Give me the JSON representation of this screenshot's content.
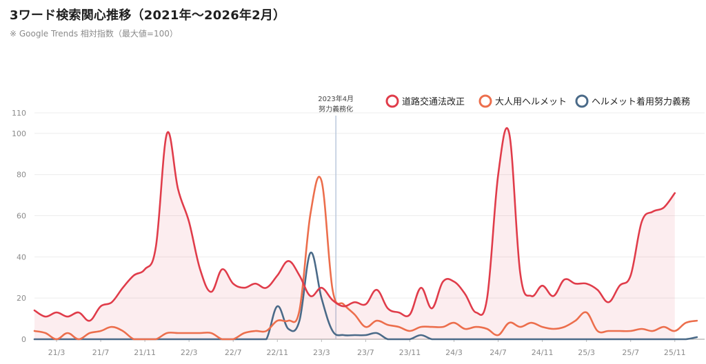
{
  "header": {
    "title": "3ワード検索関心推移（2021年～2026年2月）",
    "subtitle": "※ Google Trends 相対指数（最大値=100）"
  },
  "chart_data": {
    "type": "line",
    "title": "3ワード検索関心推移（2021年～2026年2月）",
    "subtitle": "※ Google Trends 相対指数（最大値=100）",
    "xlabel": "",
    "ylabel": "",
    "ylim": [
      0,
      110
    ],
    "yticks": [
      0,
      20,
      40,
      60,
      80,
      100,
      110
    ],
    "x_tick_labels": [
      "21/3",
      "21/7",
      "21/11",
      "22/3",
      "22/7",
      "22/11",
      "23/3",
      "23/7",
      "23/11",
      "24/3",
      "24/7",
      "24/11",
      "25/3",
      "25/7",
      "25/11"
    ],
    "x_tick_months": [
      2,
      6,
      10,
      14,
      18,
      22,
      26,
      30,
      34,
      38,
      42,
      46,
      50,
      54,
      58
    ],
    "x_start": "2021-01",
    "x_end": "2026-02",
    "grid": true,
    "legend_position": "top-right",
    "annotation": {
      "month": 27.3,
      "line1": "2023年4月",
      "line2": "努力義務化"
    },
    "series": [
      {
        "name": "道路交通法改正",
        "color": "#e03c4a",
        "fill": true,
        "points": [
          [
            0,
            14
          ],
          [
            1,
            11
          ],
          [
            2,
            13
          ],
          [
            3,
            11
          ],
          [
            4,
            13
          ],
          [
            5,
            9
          ],
          [
            6,
            16
          ],
          [
            7,
            18
          ],
          [
            8,
            25
          ],
          [
            9,
            31
          ],
          [
            10,
            34
          ],
          [
            11,
            45
          ],
          [
            12,
            100
          ],
          [
            13,
            73
          ],
          [
            14,
            57
          ],
          [
            15,
            34
          ],
          [
            16,
            23
          ],
          [
            17,
            34
          ],
          [
            18,
            27
          ],
          [
            19,
            25
          ],
          [
            20,
            27
          ],
          [
            21,
            25
          ],
          [
            22,
            31
          ],
          [
            23,
            38
          ],
          [
            24,
            31
          ],
          [
            25,
            21
          ],
          [
            26,
            25
          ],
          [
            27,
            19
          ],
          [
            28,
            16
          ],
          [
            29,
            18
          ],
          [
            30,
            17
          ],
          [
            31,
            24
          ],
          [
            32,
            15
          ],
          [
            33,
            13
          ],
          [
            34,
            12
          ],
          [
            35,
            25
          ],
          [
            36,
            15
          ],
          [
            37,
            28
          ],
          [
            38,
            28
          ],
          [
            39,
            22
          ],
          [
            40,
            13
          ],
          [
            41,
            20
          ],
          [
            42,
            80
          ],
          [
            43,
            100
          ],
          [
            44,
            32
          ],
          [
            45,
            21
          ],
          [
            46,
            26
          ],
          [
            47,
            21
          ],
          [
            48,
            29
          ],
          [
            49,
            27
          ],
          [
            50,
            27
          ],
          [
            51,
            24
          ],
          [
            52,
            18
          ],
          [
            53,
            26
          ],
          [
            54,
            31
          ],
          [
            55,
            57
          ],
          [
            56,
            62
          ],
          [
            57,
            64
          ],
          [
            58,
            71
          ]
        ]
      },
      {
        "name": "大人用ヘルメット",
        "color": "#ec6e4c",
        "fill": false,
        "points": [
          [
            0,
            4
          ],
          [
            1,
            3
          ],
          [
            2,
            0
          ],
          [
            3,
            3
          ],
          [
            4,
            0
          ],
          [
            5,
            3
          ],
          [
            6,
            4
          ],
          [
            7,
            6
          ],
          [
            8,
            4
          ],
          [
            9,
            0
          ],
          [
            10,
            0
          ],
          [
            11,
            0
          ],
          [
            12,
            3
          ],
          [
            13,
            3
          ],
          [
            14,
            3
          ],
          [
            15,
            3
          ],
          [
            16,
            3
          ],
          [
            17,
            0
          ],
          [
            18,
            0
          ],
          [
            19,
            3
          ],
          [
            20,
            4
          ],
          [
            21,
            4
          ],
          [
            22,
            9
          ],
          [
            23,
            9
          ],
          [
            24,
            14
          ],
          [
            25,
            61
          ],
          [
            26,
            77
          ],
          [
            27,
            24
          ],
          [
            28,
            17
          ],
          [
            29,
            12
          ],
          [
            30,
            6
          ],
          [
            31,
            9
          ],
          [
            32,
            7
          ],
          [
            33,
            6
          ],
          [
            34,
            4
          ],
          [
            35,
            6
          ],
          [
            36,
            6
          ],
          [
            37,
            6
          ],
          [
            38,
            8
          ],
          [
            39,
            5
          ],
          [
            40,
            6
          ],
          [
            41,
            5
          ],
          [
            42,
            2
          ],
          [
            43,
            8
          ],
          [
            44,
            6
          ],
          [
            45,
            8
          ],
          [
            46,
            6
          ],
          [
            47,
            5
          ],
          [
            48,
            6
          ],
          [
            49,
            9
          ],
          [
            50,
            13
          ],
          [
            51,
            4
          ],
          [
            52,
            4
          ],
          [
            53,
            4
          ],
          [
            54,
            4
          ],
          [
            55,
            5
          ],
          [
            56,
            4
          ],
          [
            57,
            6
          ],
          [
            58,
            4
          ],
          [
            59,
            8
          ],
          [
            60,
            9
          ]
        ]
      },
      {
        "name": "ヘルメット着用努力義務",
        "color": "#4a6a88",
        "fill": false,
        "points": [
          [
            0,
            0
          ],
          [
            1,
            0
          ],
          [
            2,
            0
          ],
          [
            3,
            0
          ],
          [
            4,
            0
          ],
          [
            5,
            0
          ],
          [
            6,
            0
          ],
          [
            7,
            0
          ],
          [
            8,
            0
          ],
          [
            9,
            0
          ],
          [
            10,
            0
          ],
          [
            11,
            0
          ],
          [
            12,
            0
          ],
          [
            13,
            0
          ],
          [
            14,
            0
          ],
          [
            15,
            0
          ],
          [
            16,
            0
          ],
          [
            17,
            0
          ],
          [
            18,
            0
          ],
          [
            19,
            0
          ],
          [
            20,
            0
          ],
          [
            21,
            0
          ],
          [
            22,
            16
          ],
          [
            23,
            5
          ],
          [
            24,
            9
          ],
          [
            25,
            42
          ],
          [
            26,
            20
          ],
          [
            27,
            4
          ],
          [
            28,
            2
          ],
          [
            29,
            2
          ],
          [
            30,
            2
          ],
          [
            31,
            3
          ],
          [
            32,
            0
          ],
          [
            33,
            0
          ],
          [
            34,
            0
          ],
          [
            35,
            2
          ],
          [
            36,
            0
          ],
          [
            37,
            0
          ],
          [
            38,
            0
          ],
          [
            39,
            0
          ],
          [
            40,
            0
          ],
          [
            41,
            0
          ],
          [
            42,
            0
          ],
          [
            43,
            0
          ],
          [
            44,
            0
          ],
          [
            45,
            0
          ],
          [
            46,
            0
          ],
          [
            47,
            0
          ],
          [
            48,
            0
          ],
          [
            49,
            0
          ],
          [
            50,
            0
          ],
          [
            51,
            0
          ],
          [
            52,
            0
          ],
          [
            53,
            0
          ],
          [
            54,
            0
          ],
          [
            55,
            0
          ],
          [
            56,
            0
          ],
          [
            57,
            0
          ],
          [
            58,
            0
          ],
          [
            59,
            0
          ],
          [
            60,
            1
          ]
        ]
      }
    ]
  }
}
